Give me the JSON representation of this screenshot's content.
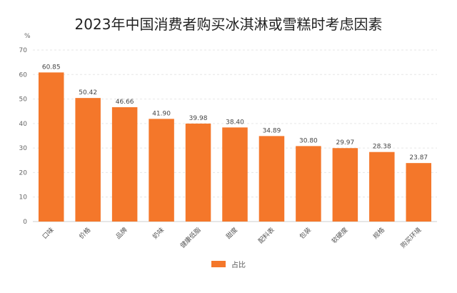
{
  "chart_data": {
    "type": "bar",
    "title": "2023年中国消费者购买冰淇淋或雪糕时考虑因素",
    "ylabel": "%",
    "xlabel": "",
    "categories": [
      "口味",
      "价格",
      "品牌",
      "奶味",
      "健康低脂",
      "甜度",
      "配料表",
      "包装",
      "软硬度",
      "规格",
      "购买环境"
    ],
    "series": [
      {
        "name": "占比",
        "values": [
          60.85,
          50.42,
          46.66,
          41.9,
          39.98,
          38.4,
          34.89,
          30.8,
          29.97,
          28.38,
          23.87
        ]
      }
    ],
    "value_labels": [
      "60.85",
      "50.42",
      "46.66",
      "41.90",
      "39.98",
      "38.40",
      "34.89",
      "30.80",
      "29.97",
      "28.38",
      "23.87"
    ],
    "ylim": [
      0,
      70
    ],
    "yticks": [
      0,
      10,
      20,
      30,
      40,
      50,
      60,
      70
    ],
    "grid": true,
    "legend_position": "bottom-center",
    "bar_color": "#F4772A"
  }
}
